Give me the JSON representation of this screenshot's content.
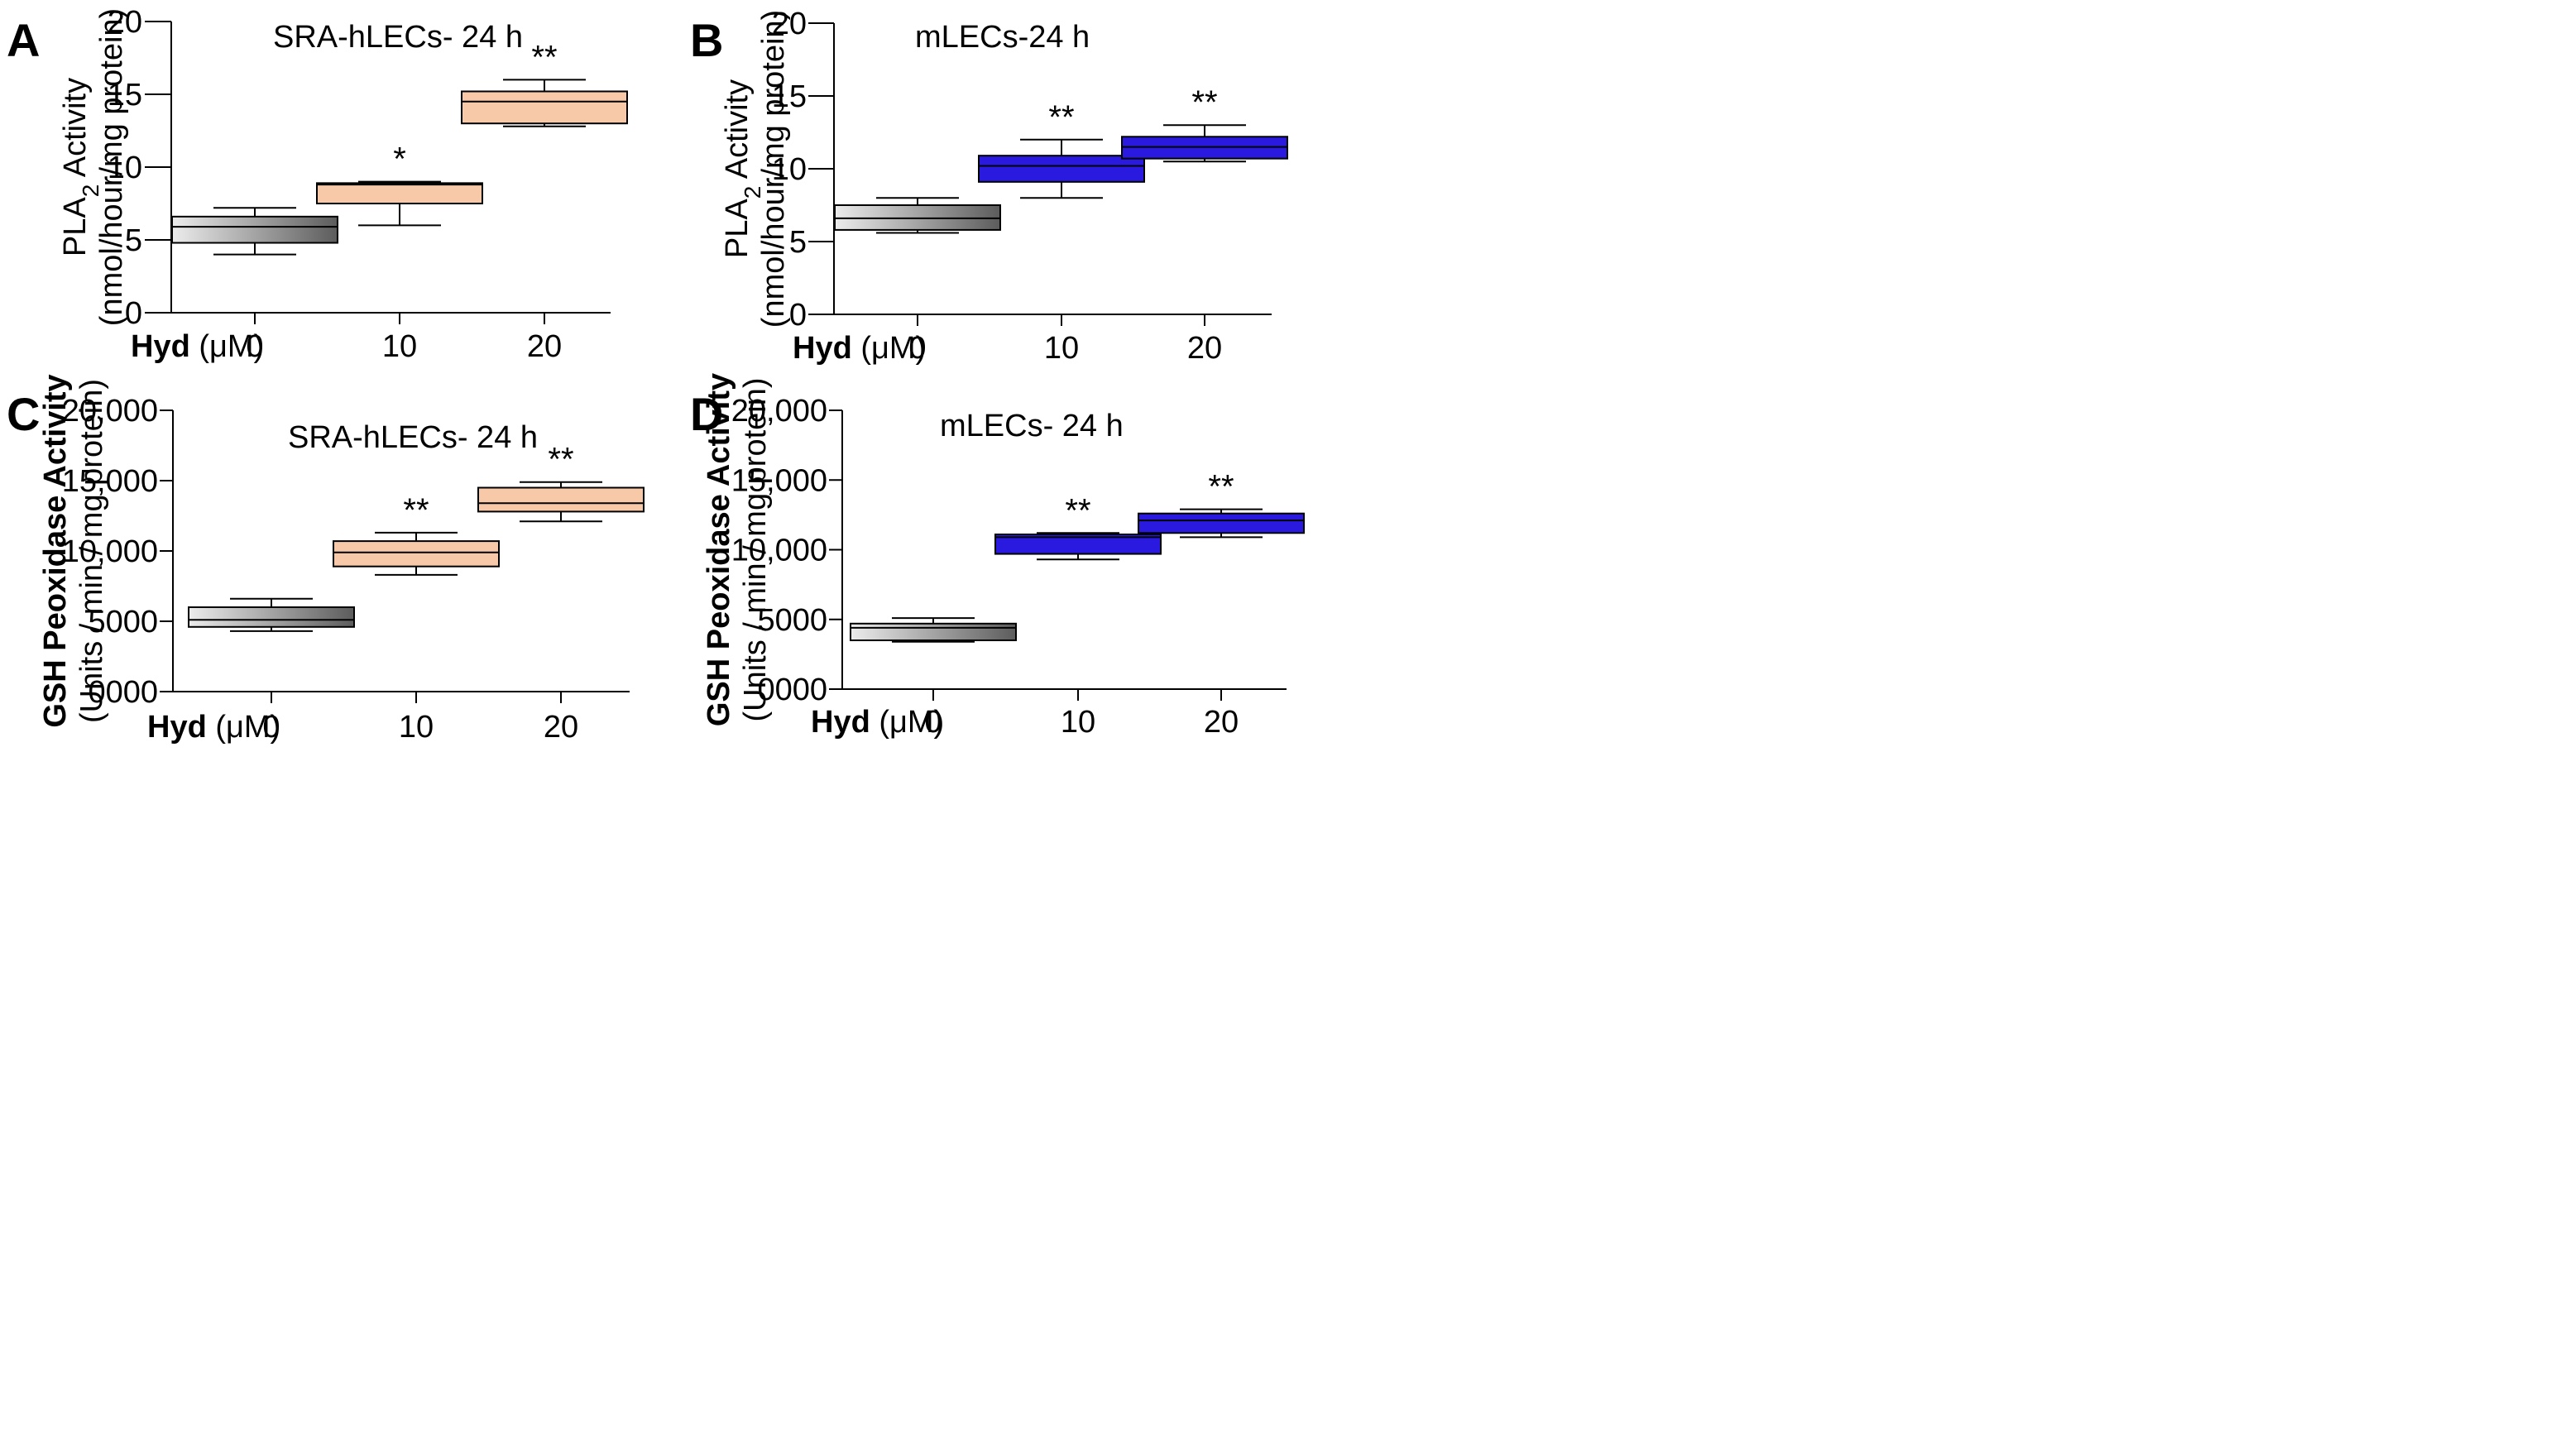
{
  "figure": {
    "hyd_label_bold": "Hyd",
    "hyd_label_unit": " (μM)"
  },
  "chart_data": [
    {
      "panel": "A",
      "type": "boxplot",
      "title": "SRA-hLECs- 24 h",
      "ylabel_parts": [
        "PLA",
        "2",
        " Activity"
      ],
      "ylabel_line2": "(nmol/hour/mg protein)",
      "ylim": [
        0,
        20
      ],
      "yticks": [
        0,
        5,
        10,
        15,
        20
      ],
      "ytick_labels": [
        "0",
        "5",
        "10",
        "15",
        "20"
      ],
      "categories": [
        "0",
        "10",
        "20"
      ],
      "boxes": [
        {
          "min": 4.0,
          "q1": 4.8,
          "median": 5.9,
          "q3": 6.6,
          "max": 7.2,
          "sig": "",
          "fill": "gray"
        },
        {
          "min": 6.0,
          "q1": 7.5,
          "median": 8.8,
          "q3": 8.9,
          "max": 9.0,
          "sig": "*",
          "fill": "#f7c9a9"
        },
        {
          "min": 12.8,
          "q1": 13.0,
          "median": 14.5,
          "q3": 15.2,
          "max": 16.0,
          "sig": "**",
          "fill": "#f7c9a9"
        }
      ]
    },
    {
      "panel": "B",
      "type": "boxplot",
      "title": "mLECs-24 h",
      "ylabel_parts": [
        "PLA",
        "2",
        " Activity"
      ],
      "ylabel_line2": "(nmol/hour/mg protein)",
      "ylim": [
        0,
        20
      ],
      "yticks": [
        0,
        5,
        10,
        15,
        20
      ],
      "ytick_labels": [
        "0",
        "5",
        "10",
        "15",
        "20"
      ],
      "categories": [
        "0",
        "10",
        "20"
      ],
      "boxes": [
        {
          "min": 5.6,
          "q1": 5.8,
          "median": 6.6,
          "q3": 7.5,
          "max": 8.0,
          "sig": "",
          "fill": "gray"
        },
        {
          "min": 8.0,
          "q1": 9.1,
          "median": 10.2,
          "q3": 10.9,
          "max": 12.0,
          "sig": "**",
          "fill": "#2a1adf"
        },
        {
          "min": 10.5,
          "q1": 10.7,
          "median": 11.5,
          "q3": 12.2,
          "max": 13.0,
          "sig": "**",
          "fill": "#2a1adf"
        }
      ]
    },
    {
      "panel": "C",
      "type": "boxplot",
      "title": "SRA-hLECs- 24 h",
      "ylabel_bold": "GSH Peoxidase Activity",
      "ylabel_line2": "(Units / min / mg protein)",
      "ylim": [
        0,
        20000
      ],
      "yticks": [
        0,
        5000,
        10000,
        15000,
        20000
      ],
      "ytick_labels": [
        "0000",
        "5000",
        "10,000",
        "15,000",
        "20,000"
      ],
      "categories": [
        "0",
        "10",
        "20"
      ],
      "boxes": [
        {
          "min": 4300,
          "q1": 4600,
          "median": 5100,
          "q3": 6000,
          "max": 6600,
          "sig": "",
          "fill": "gray"
        },
        {
          "min": 8300,
          "q1": 8900,
          "median": 9900,
          "q3": 10700,
          "max": 11300,
          "sig": "**",
          "fill": "#f7c9a9"
        },
        {
          "min": 12100,
          "q1": 12800,
          "median": 13400,
          "q3": 14500,
          "max": 14900,
          "sig": "**",
          "fill": "#f7c9a9"
        }
      ]
    },
    {
      "panel": "D",
      "type": "boxplot",
      "title": "mLECs- 24 h",
      "ylabel_bold": "GSH Peoxidase Activity",
      "ylabel_line2": "(Units / min / mg protein)",
      "ylim": [
        0,
        20000
      ],
      "yticks": [
        0,
        5000,
        10000,
        15000,
        20000
      ],
      "ytick_labels": [
        "0000",
        "5000",
        "10,000",
        "15,000",
        "20,000"
      ],
      "categories": [
        "0",
        "10",
        "20"
      ],
      "boxes": [
        {
          "min": 3400,
          "q1": 3500,
          "median": 4400,
          "q3": 4700,
          "max": 5100,
          "sig": "",
          "fill": "gray"
        },
        {
          "min": 9300,
          "q1": 9700,
          "median": 10900,
          "q3": 11100,
          "max": 11200,
          "sig": "**",
          "fill": "#2a1adf"
        },
        {
          "min": 10900,
          "q1": 11200,
          "median": 12100,
          "q3": 12600,
          "max": 12900,
          "sig": "**",
          "fill": "#2a1adf"
        }
      ]
    }
  ]
}
